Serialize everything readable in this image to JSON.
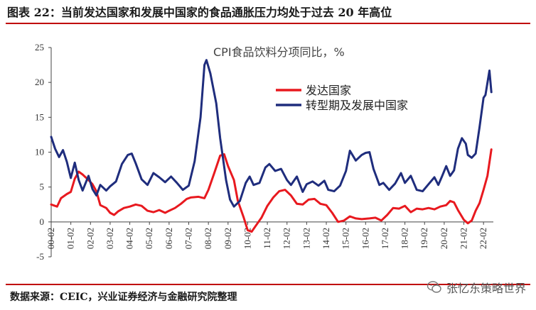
{
  "figure": {
    "title": "图表 22：当前发达国家和发展中国家的食品通胀压力均处于过去 20 年高位",
    "source": "数据来源：CEIC，兴业证券经济与金融研究院整理",
    "watermark": "张忆东策略世界",
    "watermark_icon": "wechat-bubble-icon"
  },
  "chart_data": {
    "type": "line",
    "title": "CPI食品饮料分项同比，%",
    "xlabel": "",
    "ylabel": "",
    "ylim": [
      -5,
      25
    ],
    "yticks": [
      "25",
      "20",
      "15",
      "10",
      "5",
      "0",
      "-5"
    ],
    "xlim": [
      2000.0,
      2022.5
    ],
    "xticks": [
      "00-02",
      "01-02",
      "02-02",
      "03-02",
      "04-02",
      "05-02",
      "06-02",
      "07-02",
      "08-02",
      "09-02",
      "10-02",
      "11-02",
      "12-02",
      "13-02",
      "14-02",
      "15-02",
      "16-02",
      "17-02",
      "18-02",
      "19-02",
      "20-02",
      "21-02",
      "22-02"
    ],
    "grid": false,
    "legend_position": "upper-right",
    "series": [
      {
        "name": "发达国家",
        "color": "#e8191f",
        "points": [
          [
            2000.0,
            2.5
          ],
          [
            2000.3,
            2.2
          ],
          [
            2000.5,
            3.4
          ],
          [
            2000.8,
            4.0
          ],
          [
            2001.0,
            4.3
          ],
          [
            2001.2,
            6.2
          ],
          [
            2001.4,
            7.2
          ],
          [
            2001.6,
            6.8
          ],
          [
            2001.9,
            6.0
          ],
          [
            2002.1,
            5.4
          ],
          [
            2002.3,
            4.4
          ],
          [
            2002.5,
            2.4
          ],
          [
            2002.8,
            2.0
          ],
          [
            2003.0,
            1.3
          ],
          [
            2003.2,
            1.0
          ],
          [
            2003.4,
            1.5
          ],
          [
            2003.7,
            2.0
          ],
          [
            2004.0,
            2.2
          ],
          [
            2004.3,
            2.5
          ],
          [
            2004.6,
            2.3
          ],
          [
            2004.9,
            1.6
          ],
          [
            2005.2,
            1.4
          ],
          [
            2005.5,
            1.7
          ],
          [
            2005.8,
            1.3
          ],
          [
            2006.0,
            1.6
          ],
          [
            2006.3,
            2.0
          ],
          [
            2006.6,
            2.6
          ],
          [
            2006.9,
            3.3
          ],
          [
            2007.1,
            3.5
          ],
          [
            2007.5,
            3.6
          ],
          [
            2007.8,
            3.4
          ],
          [
            2008.0,
            4.6
          ],
          [
            2008.3,
            7.0
          ],
          [
            2008.6,
            9.5
          ],
          [
            2008.8,
            9.7
          ],
          [
            2009.0,
            8.0
          ],
          [
            2009.3,
            6.0
          ],
          [
            2009.5,
            3.0
          ],
          [
            2009.8,
            0.6
          ],
          [
            2010.0,
            -1.2
          ],
          [
            2010.2,
            -1.4
          ],
          [
            2010.4,
            -0.6
          ],
          [
            2010.7,
            0.6
          ],
          [
            2011.0,
            2.3
          ],
          [
            2011.3,
            3.5
          ],
          [
            2011.6,
            4.4
          ],
          [
            2011.9,
            4.6
          ],
          [
            2012.2,
            3.8
          ],
          [
            2012.5,
            2.6
          ],
          [
            2012.8,
            2.5
          ],
          [
            2013.1,
            3.2
          ],
          [
            2013.4,
            3.3
          ],
          [
            2013.7,
            2.6
          ],
          [
            2014.0,
            2.4
          ],
          [
            2014.3,
            1.3
          ],
          [
            2014.6,
            0.0
          ],
          [
            2014.9,
            0.2
          ],
          [
            2015.2,
            0.8
          ],
          [
            2015.5,
            0.5
          ],
          [
            2015.8,
            0.4
          ],
          [
            2016.2,
            0.5
          ],
          [
            2016.5,
            0.6
          ],
          [
            2016.8,
            0.2
          ],
          [
            2017.1,
            1.0
          ],
          [
            2017.4,
            2.0
          ],
          [
            2017.7,
            1.9
          ],
          [
            2018.0,
            2.3
          ],
          [
            2018.3,
            1.4
          ],
          [
            2018.6,
            1.9
          ],
          [
            2018.9,
            1.8
          ],
          [
            2019.2,
            2.0
          ],
          [
            2019.5,
            1.8
          ],
          [
            2019.8,
            2.2
          ],
          [
            2020.1,
            2.4
          ],
          [
            2020.3,
            3.0
          ],
          [
            2020.5,
            2.8
          ],
          [
            2020.7,
            1.7
          ],
          [
            2021.0,
            0.3
          ],
          [
            2021.2,
            -0.2
          ],
          [
            2021.4,
            0.2
          ],
          [
            2021.6,
            1.6
          ],
          [
            2021.8,
            2.7
          ],
          [
            2022.0,
            4.6
          ],
          [
            2022.2,
            6.6
          ],
          [
            2022.4,
            10.4
          ]
        ]
      },
      {
        "name": "转型期及发展中国家",
        "color": "#1f2d7d",
        "points": [
          [
            2000.0,
            12.2
          ],
          [
            2000.2,
            10.5
          ],
          [
            2000.4,
            9.3
          ],
          [
            2000.6,
            10.3
          ],
          [
            2000.8,
            8.6
          ],
          [
            2001.0,
            6.3
          ],
          [
            2001.2,
            8.5
          ],
          [
            2001.4,
            6.0
          ],
          [
            2001.6,
            4.5
          ],
          [
            2001.9,
            6.6
          ],
          [
            2002.1,
            4.7
          ],
          [
            2002.3,
            3.8
          ],
          [
            2002.5,
            5.3
          ],
          [
            2002.8,
            4.5
          ],
          [
            2003.0,
            5.1
          ],
          [
            2003.3,
            5.8
          ],
          [
            2003.6,
            8.3
          ],
          [
            2003.9,
            9.6
          ],
          [
            2004.1,
            9.8
          ],
          [
            2004.3,
            8.4
          ],
          [
            2004.6,
            6.1
          ],
          [
            2004.9,
            5.3
          ],
          [
            2005.2,
            7.0
          ],
          [
            2005.5,
            6.4
          ],
          [
            2005.8,
            5.7
          ],
          [
            2006.1,
            6.5
          ],
          [
            2006.4,
            5.6
          ],
          [
            2006.7,
            4.6
          ],
          [
            2007.0,
            5.2
          ],
          [
            2007.3,
            8.7
          ],
          [
            2007.6,
            15.0
          ],
          [
            2007.8,
            22.5
          ],
          [
            2007.9,
            23.2
          ],
          [
            2008.1,
            21.3
          ],
          [
            2008.4,
            17.0
          ],
          [
            2008.6,
            12.0
          ],
          [
            2008.9,
            6.0
          ],
          [
            2009.1,
            3.2
          ],
          [
            2009.3,
            2.2
          ],
          [
            2009.6,
            3.0
          ],
          [
            2009.9,
            5.6
          ],
          [
            2010.1,
            6.5
          ],
          [
            2010.3,
            5.3
          ],
          [
            2010.6,
            5.6
          ],
          [
            2010.9,
            7.8
          ],
          [
            2011.1,
            8.3
          ],
          [
            2011.4,
            7.3
          ],
          [
            2011.7,
            7.6
          ],
          [
            2012.0,
            6.0
          ],
          [
            2012.2,
            5.3
          ],
          [
            2012.5,
            6.5
          ],
          [
            2012.8,
            4.3
          ],
          [
            2013.0,
            5.4
          ],
          [
            2013.3,
            5.8
          ],
          [
            2013.6,
            5.2
          ],
          [
            2013.9,
            5.9
          ],
          [
            2014.1,
            4.6
          ],
          [
            2014.4,
            4.4
          ],
          [
            2014.7,
            5.2
          ],
          [
            2015.0,
            7.3
          ],
          [
            2015.2,
            10.2
          ],
          [
            2015.5,
            8.8
          ],
          [
            2015.8,
            9.6
          ],
          [
            2016.0,
            9.9
          ],
          [
            2016.2,
            10.0
          ],
          [
            2016.4,
            7.6
          ],
          [
            2016.7,
            5.3
          ],
          [
            2016.9,
            5.6
          ],
          [
            2017.2,
            4.6
          ],
          [
            2017.5,
            5.5
          ],
          [
            2017.8,
            7.0
          ],
          [
            2018.0,
            5.6
          ],
          [
            2018.3,
            6.6
          ],
          [
            2018.6,
            4.6
          ],
          [
            2018.9,
            4.4
          ],
          [
            2019.2,
            5.4
          ],
          [
            2019.5,
            6.4
          ],
          [
            2019.7,
            5.3
          ],
          [
            2019.9,
            6.6
          ],
          [
            2020.1,
            8.0
          ],
          [
            2020.3,
            6.6
          ],
          [
            2020.5,
            7.4
          ],
          [
            2020.7,
            10.5
          ],
          [
            2020.9,
            12.0
          ],
          [
            2021.1,
            11.2
          ],
          [
            2021.2,
            9.6
          ],
          [
            2021.4,
            9.2
          ],
          [
            2021.6,
            9.8
          ],
          [
            2021.8,
            13.6
          ],
          [
            2022.0,
            17.8
          ],
          [
            2022.1,
            18.2
          ],
          [
            2022.3,
            21.7
          ],
          [
            2022.4,
            18.6
          ]
        ]
      }
    ]
  }
}
